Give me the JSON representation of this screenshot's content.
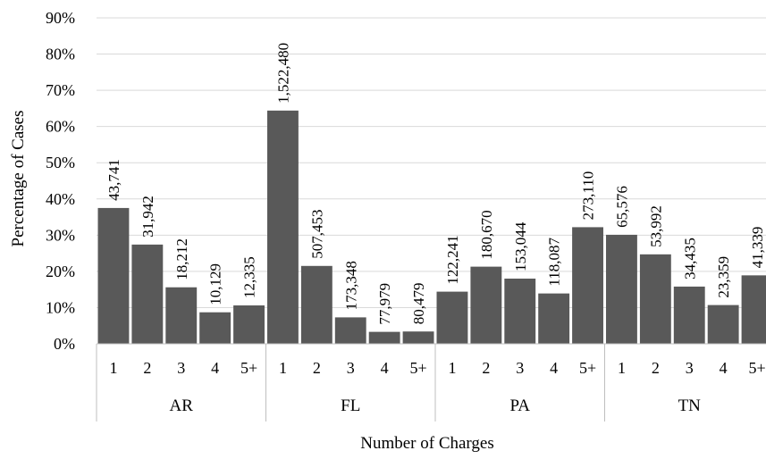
{
  "chart_data": {
    "type": "bar",
    "ylabel": "Percentage of Cases",
    "xlabel": "Number of Charges",
    "ylim": [
      0,
      90
    ],
    "y_ticks": [
      "0%",
      "10%",
      "20%",
      "30%",
      "40%",
      "50%",
      "60%",
      "70%",
      "80%",
      "90%"
    ],
    "grid": true,
    "bar_color": "#595959",
    "groups": [
      {
        "name": "AR",
        "categories": [
          "1",
          "2",
          "3",
          "4",
          "5+"
        ],
        "values": [
          37.5,
          27.4,
          15.6,
          8.7,
          10.6
        ],
        "labels": [
          "43,741",
          "31,942",
          "18,212",
          "10,129",
          "12,335"
        ]
      },
      {
        "name": "FL",
        "categories": [
          "1",
          "2",
          "3",
          "4",
          "5+"
        ],
        "values": [
          64.4,
          21.5,
          7.3,
          3.3,
          3.4
        ],
        "labels": [
          "1,522,480",
          "507,453",
          "173,348",
          "77,979",
          "80,479"
        ]
      },
      {
        "name": "PA",
        "categories": [
          "1",
          "2",
          "3",
          "4",
          "5+"
        ],
        "values": [
          14.4,
          21.3,
          18.0,
          13.9,
          32.2
        ],
        "labels": [
          "122,241",
          "180,670",
          "153,044",
          "118,087",
          "273,110"
        ]
      },
      {
        "name": "TN",
        "categories": [
          "1",
          "2",
          "3",
          "4",
          "5+"
        ],
        "values": [
          30.1,
          24.7,
          15.8,
          10.7,
          18.9
        ],
        "labels": [
          "65,576",
          "53,992",
          "34,435",
          "23,359",
          "41,339"
        ]
      }
    ]
  }
}
